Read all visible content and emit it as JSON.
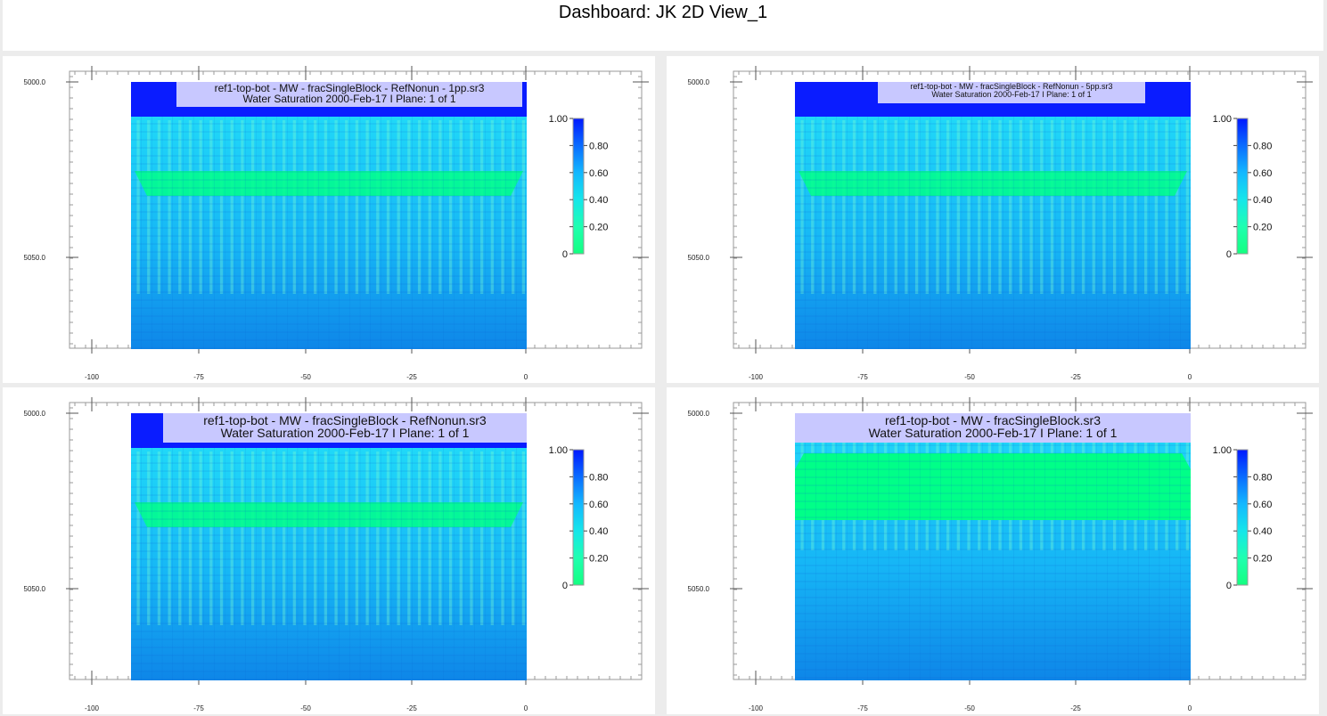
{
  "dashboard": {
    "title": "Dashboard: JK 2D View_1"
  },
  "panels": [
    {
      "title_line1": "ref1-top-bot - MW - fracSingleBlock - RefNonun - 1pp.sr3",
      "title_line2": "Water Saturation  2000-Feb-17   I Plane: 1 of 1",
      "title_size": "medium"
    },
    {
      "title_line1": "ref1-top-bot - MW - fracSingleBlock - RefNonun - 5pp.sr3",
      "title_line2": "Water Saturation  2000-Feb-17   I Plane: 1 of 1",
      "title_size": "small"
    },
    {
      "title_line1": "ref1-top-bot - MW - fracSingleBlock - RefNonun.sr3",
      "title_line2": "Water Saturation  2000-Feb-17   I Plane: 1 of 1",
      "title_size": "large"
    },
    {
      "title_line1": "ref1-top-bot - MW - fracSingleBlock.sr3",
      "title_line2": "Water Saturation  2000-Feb-17   I Plane: 1 of 1",
      "title_size": "large"
    }
  ],
  "axes": {
    "y_ticks": [
      "5000.0",
      "5050.0"
    ],
    "x_ticks": [
      "-100",
      "-75",
      "-50",
      "-25",
      "0"
    ]
  },
  "colorbar": {
    "labels": [
      "1.00",
      "0.80",
      "0.60",
      "0.40",
      "0.20",
      "0"
    ],
    "colors": [
      "#0018ff",
      "#0a6cff",
      "#13b8ff",
      "#15e6ea",
      "#1fffb0",
      "#14ff80"
    ]
  },
  "field_colors": {
    "top_layer": "#0a1cff",
    "front": "#00ff88",
    "light": "#20d8f8",
    "mid": "#16b6f6",
    "deep": "#0e86e8"
  }
}
